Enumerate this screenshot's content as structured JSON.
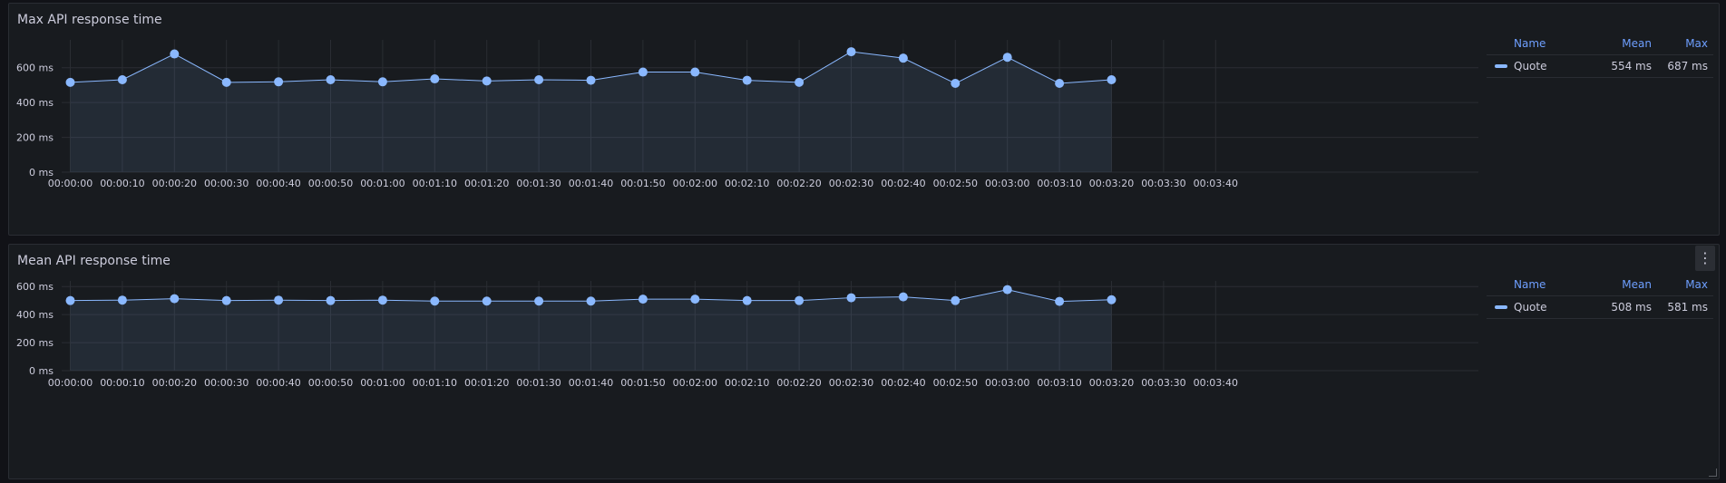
{
  "chart_data": [
    {
      "type": "line",
      "title": "Max API response time",
      "x": [
        "00:00:00",
        "00:00:10",
        "00:00:20",
        "00:00:30",
        "00:00:40",
        "00:00:50",
        "00:01:00",
        "00:01:10",
        "00:01:20",
        "00:01:30",
        "00:01:40",
        "00:01:50",
        "00:02:00",
        "00:02:10",
        "00:02:20",
        "00:02:30",
        "00:02:40",
        "00:02:50",
        "00:03:00",
        "00:03:10",
        "00:03:20"
      ],
      "x_ticks": [
        "00:00:00",
        "00:00:10",
        "00:00:20",
        "00:00:30",
        "00:00:40",
        "00:00:50",
        "00:01:00",
        "00:01:10",
        "00:01:20",
        "00:01:30",
        "00:01:40",
        "00:01:50",
        "00:02:00",
        "00:02:10",
        "00:02:20",
        "00:02:30",
        "00:02:40",
        "00:02:50",
        "00:03:00",
        "00:03:10",
        "00:03:20",
        "00:03:30",
        "00:03:40"
      ],
      "y_ticks": [
        "0 ms",
        "200 ms",
        "400 ms",
        "600 ms"
      ],
      "y_tick_values": [
        0,
        200,
        400,
        600
      ],
      "ylim": [
        0,
        760
      ],
      "grid": true,
      "legend_placement": "right",
      "series": [
        {
          "name": "Quote",
          "color": "#8ab8ff",
          "values": [
            516,
            531,
            679,
            516,
            519,
            531,
            519,
            536,
            524,
            531,
            528,
            575,
            575,
            528,
            516,
            692,
            655,
            510,
            660,
            510,
            531
          ]
        }
      ],
      "legend": {
        "headers": {
          "name": "Name",
          "mean": "Mean",
          "max": "Max"
        },
        "rows": [
          {
            "name": "Quote",
            "mean": "554 ms",
            "max": "687 ms"
          }
        ]
      }
    },
    {
      "type": "line",
      "title": "Mean API response time",
      "x": [
        "00:00:00",
        "00:00:10",
        "00:00:20",
        "00:00:30",
        "00:00:40",
        "00:00:50",
        "00:01:00",
        "00:01:10",
        "00:01:20",
        "00:01:30",
        "00:01:40",
        "00:01:50",
        "00:02:00",
        "00:02:10",
        "00:02:20",
        "00:02:30",
        "00:02:40",
        "00:02:50",
        "00:03:00",
        "00:03:10",
        "00:03:20"
      ],
      "x_ticks": [
        "00:00:00",
        "00:00:10",
        "00:00:20",
        "00:00:30",
        "00:00:40",
        "00:00:50",
        "00:01:00",
        "00:01:10",
        "00:01:20",
        "00:01:30",
        "00:01:40",
        "00:01:50",
        "00:02:00",
        "00:02:10",
        "00:02:20",
        "00:02:30",
        "00:02:40",
        "00:02:50",
        "00:03:00",
        "00:03:10",
        "00:03:20",
        "00:03:30",
        "00:03:40"
      ],
      "y_ticks": [
        "0 ms",
        "200 ms",
        "400 ms",
        "600 ms"
      ],
      "y_tick_values": [
        0,
        200,
        400,
        600
      ],
      "ylim": [
        0,
        640
      ],
      "grid": true,
      "legend_placement": "right",
      "series": [
        {
          "name": "Quote",
          "color": "#8ab8ff",
          "values": [
            500,
            503,
            513,
            500,
            503,
            500,
            503,
            496,
            496,
            496,
            496,
            510,
            510,
            500,
            500,
            520,
            526,
            500,
            578,
            494,
            506
          ]
        }
      ],
      "legend": {
        "headers": {
          "name": "Name",
          "mean": "Mean",
          "max": "Max"
        },
        "rows": [
          {
            "name": "Quote",
            "mean": "508 ms",
            "max": "581 ms"
          }
        ]
      }
    }
  ],
  "panels": {
    "max": {
      "title": "Max API response time"
    },
    "mean": {
      "title": "Mean API response time",
      "menu_icon": "kebab-menu-icon",
      "menu_glyph": "⋮"
    }
  }
}
